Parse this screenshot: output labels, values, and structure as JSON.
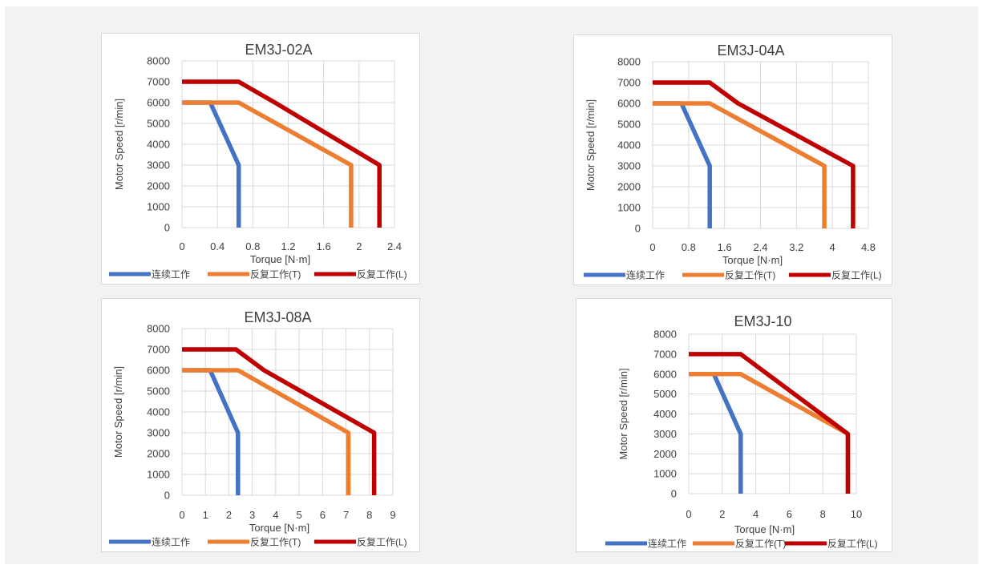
{
  "colors": {
    "continuous": "#4472c4",
    "repeat_T": "#ed7d31",
    "repeat_L": "#c00000"
  },
  "chart_data": [
    {
      "type": "line",
      "title": "EM3J-02A",
      "xlabel": "Torque [N·m]",
      "ylabel": "Motor Speed [r/min]",
      "xlim": [
        0,
        2.4
      ],
      "ylim": [
        0,
        8000
      ],
      "x_ticks": [
        "0",
        "0.4",
        "0.8",
        "1.2",
        "1.6",
        "2",
        "2.4"
      ],
      "y_ticks": [
        "0",
        "1000",
        "2000",
        "3000",
        "4000",
        "5000",
        "6000",
        "7000",
        "8000"
      ],
      "legend_position": "bottom",
      "series": [
        {
          "name": "连续工作",
          "color_key": "continuous",
          "points": [
            [
              0,
              6000
            ],
            [
              0.32,
              6000
            ],
            [
              0.64,
              3000
            ],
            [
              0.64,
              0
            ]
          ]
        },
        {
          "name": "反复工作(T)",
          "color_key": "repeat_T",
          "points": [
            [
              0,
              6000
            ],
            [
              0.64,
              6000
            ],
            [
              1.91,
              3000
            ],
            [
              1.91,
              0
            ]
          ]
        },
        {
          "name": "反复工作(L)",
          "color_key": "repeat_L",
          "points": [
            [
              0,
              7000
            ],
            [
              0.64,
              7000
            ],
            [
              1.05,
              6000
            ],
            [
              2.23,
              3000
            ],
            [
              2.23,
              0
            ]
          ]
        }
      ]
    },
    {
      "type": "line",
      "title": "EM3J-04A",
      "xlabel": "Torque [N·m]",
      "ylabel": "Motor Speed [r/min]",
      "xlim": [
        0,
        4.8
      ],
      "ylim": [
        0,
        8000
      ],
      "x_ticks": [
        "0",
        "0.8",
        "1.6",
        "2.4",
        "3.2",
        "4",
        "4.8"
      ],
      "y_ticks": [
        "0",
        "1000",
        "2000",
        "3000",
        "4000",
        "5000",
        "6000",
        "7000",
        "8000"
      ],
      "legend_position": "bottom",
      "series": [
        {
          "name": "连续工作",
          "color_key": "continuous",
          "points": [
            [
              0,
              6000
            ],
            [
              0.64,
              6000
            ],
            [
              1.27,
              3000
            ],
            [
              1.27,
              0
            ]
          ]
        },
        {
          "name": "反复工作(T)",
          "color_key": "repeat_T",
          "points": [
            [
              0,
              6000
            ],
            [
              1.27,
              6000
            ],
            [
              3.82,
              3000
            ],
            [
              3.82,
              0
            ]
          ]
        },
        {
          "name": "反复工作(L)",
          "color_key": "repeat_L",
          "points": [
            [
              0,
              7000
            ],
            [
              1.27,
              7000
            ],
            [
              1.9,
              6000
            ],
            [
              4.46,
              3000
            ],
            [
              4.46,
              0
            ]
          ]
        }
      ]
    },
    {
      "type": "line",
      "title": "EM3J-08A",
      "xlabel": "Torque [N·m]",
      "ylabel": "Motor Speed [r/min]",
      "xlim": [
        0,
        9
      ],
      "ylim": [
        0,
        8000
      ],
      "x_ticks": [
        "0",
        "1",
        "2",
        "3",
        "4",
        "5",
        "6",
        "7",
        "8",
        "9"
      ],
      "y_ticks": [
        "0",
        "1000",
        "2000",
        "3000",
        "4000",
        "5000",
        "6000",
        "7000",
        "8000"
      ],
      "legend_position": "bottom",
      "series": [
        {
          "name": "连续工作",
          "color_key": "continuous",
          "points": [
            [
              0,
              6000
            ],
            [
              1.2,
              6000
            ],
            [
              2.39,
              3000
            ],
            [
              2.39,
              0
            ]
          ]
        },
        {
          "name": "反复工作(T)",
          "color_key": "repeat_T",
          "points": [
            [
              0,
              6000
            ],
            [
              2.39,
              6000
            ],
            [
              7.1,
              3000
            ],
            [
              7.1,
              0
            ]
          ]
        },
        {
          "name": "反复工作(L)",
          "color_key": "repeat_L",
          "points": [
            [
              0,
              7000
            ],
            [
              2.3,
              7000
            ],
            [
              3.5,
              6000
            ],
            [
              8.2,
              3000
            ],
            [
              8.2,
              0
            ]
          ]
        }
      ]
    },
    {
      "type": "line",
      "title": "EM3J-10",
      "xlabel": "Torque [N·m]",
      "ylabel": "Motor Speed [r/min]",
      "xlim": [
        0,
        10
      ],
      "ylim": [
        0,
        8000
      ],
      "x_ticks": [
        "0",
        "2",
        "4",
        "6",
        "8",
        "10"
      ],
      "y_ticks": [
        "0",
        "1000",
        "2000",
        "3000",
        "4000",
        "5000",
        "6000",
        "7000",
        "8000"
      ],
      "legend_position": "bottom",
      "series": [
        {
          "name": "连续工作",
          "color_key": "continuous",
          "points": [
            [
              0,
              6000
            ],
            [
              1.5,
              6000
            ],
            [
              3.1,
              3000
            ],
            [
              3.1,
              0
            ]
          ]
        },
        {
          "name": "反复工作(T)",
          "color_key": "repeat_T",
          "points": [
            [
              0,
              6000
            ],
            [
              3.1,
              6000
            ],
            [
              9.5,
              3000
            ],
            [
              9.5,
              0
            ]
          ]
        },
        {
          "name": "反复工作(L)",
          "color_key": "repeat_L",
          "points": [
            [
              0,
              7000
            ],
            [
              3.1,
              7000
            ],
            [
              9.5,
              3000
            ],
            [
              9.5,
              0
            ]
          ]
        }
      ]
    }
  ]
}
